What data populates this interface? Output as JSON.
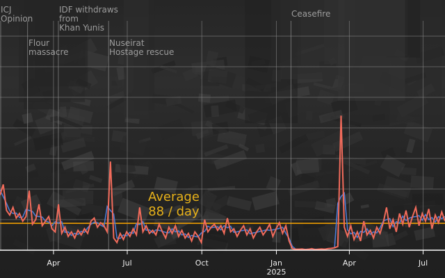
{
  "chart_data": {
    "type": "line",
    "title": "",
    "xlabel": "",
    "ylabel": "",
    "xlim": [
      "2024-01-26",
      "2025-07-28"
    ],
    "ylim": [
      0,
      700
    ],
    "grid": true,
    "x_ticks": [
      {
        "date": "2024-04-01",
        "label": "Apr",
        "sub": ""
      },
      {
        "date": "2024-07-01",
        "label": "Jul",
        "sub": ""
      },
      {
        "date": "2024-10-01",
        "label": "Oct",
        "sub": ""
      },
      {
        "date": "2025-01-01",
        "label": "Jan",
        "sub": "2025"
      },
      {
        "date": "2025-04-01",
        "label": "Apr",
        "sub": ""
      },
      {
        "date": "2025-07-01",
        "label": "Jul",
        "sub": ""
      }
    ],
    "y_gridlines": [
      100,
      200,
      300,
      400,
      500,
      600,
      700
    ],
    "events": [
      {
        "date": "2024-01-26",
        "label": "ICJ\nOpinion"
      },
      {
        "date": "2024-02-29",
        "label": "Flour\nmassacre"
      },
      {
        "date": "2024-04-07",
        "label": "IDF withdraws\nfrom\nKhan Yunis"
      },
      {
        "date": "2024-06-08",
        "label": "Nuseirat\nHostage rescue"
      },
      {
        "date": "2025-01-19",
        "label": "Ceasefire"
      }
    ],
    "average": {
      "value": 88,
      "label_line1": "Average",
      "label_line2": "88 / day"
    },
    "series": [
      {
        "kind": "daily",
        "values": [
          180,
          215,
          130,
          115,
          140,
          105,
          120,
          95,
          110,
          195,
          85,
          100,
          150,
          80,
          95,
          110,
          70,
          60,
          150,
          55,
          75,
          45,
          60,
          40,
          65,
          50,
          70,
          55,
          95,
          105,
          75,
          90,
          80,
          60,
          290,
          40,
          25,
          55,
          35,
          60,
          45,
          70,
          50,
          140,
          60,
          80,
          55,
          65,
          50,
          85,
          60,
          40,
          75,
          55,
          80,
          45,
          65,
          40,
          55,
          30,
          60,
          45,
          25,
          100,
          60,
          75,
          85,
          65,
          80,
          55,
          105,
          60,
          70,
          45,
          65,
          80,
          50,
          70,
          40,
          60,
          75,
          50,
          65,
          85,
          45,
          70,
          90,
          55,
          80,
          30,
          5,
          3,
          3,
          4,
          2,
          3,
          5,
          2,
          3,
          4,
          3,
          5,
          6,
          8,
          12,
          440,
          75,
          45,
          80,
          35,
          60,
          30,
          95,
          50,
          65,
          40,
          75,
          55,
          90,
          140,
          70,
          100,
          60,
          120,
          85,
          130,
          75,
          110,
          140,
          80,
          120,
          95,
          135,
          70,
          115,
          90,
          125,
          95
        ]
      },
      {
        "kind": "rolling-average"
      }
    ],
    "colors": {
      "daily": "#f26b5b",
      "rolling": "#4a7bd6",
      "average": "#f2a000",
      "grid": "#8a8a8a",
      "axis": "#ffffff"
    }
  }
}
